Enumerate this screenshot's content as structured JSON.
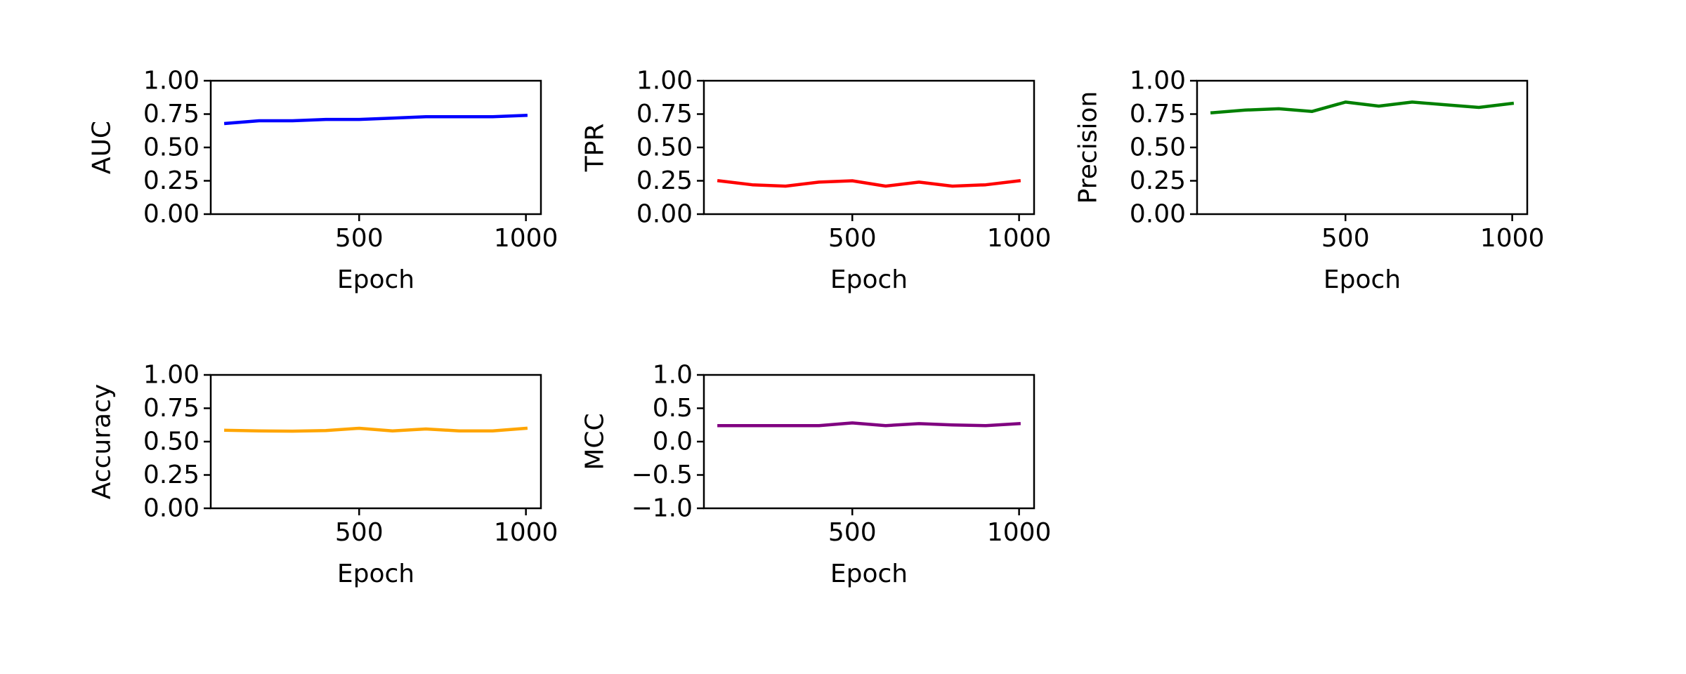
{
  "chart_data": [
    {
      "type": "line",
      "xlabel": "Epoch",
      "ylabel": "AUC",
      "color": "#0000ff",
      "xlim": [
        55,
        1045
      ],
      "ylim": [
        0.0,
        1.0
      ],
      "xticks": [
        500,
        1000
      ],
      "xtick_labels": [
        "500",
        "1000"
      ],
      "yticks": [
        0.0,
        0.25,
        0.5,
        0.75,
        1.0
      ],
      "ytick_labels": [
        "0.00",
        "0.25",
        "0.50",
        "0.75",
        "1.00"
      ],
      "x": [
        100,
        200,
        300,
        400,
        500,
        600,
        700,
        800,
        900,
        1000
      ],
      "y": [
        0.68,
        0.7,
        0.7,
        0.71,
        0.71,
        0.72,
        0.73,
        0.73,
        0.73,
        0.74
      ]
    },
    {
      "type": "line",
      "xlabel": "Epoch",
      "ylabel": "TPR",
      "color": "#ff0000",
      "xlim": [
        55,
        1045
      ],
      "ylim": [
        0.0,
        1.0
      ],
      "xticks": [
        500,
        1000
      ],
      "xtick_labels": [
        "500",
        "1000"
      ],
      "yticks": [
        0.0,
        0.25,
        0.5,
        0.75,
        1.0
      ],
      "ytick_labels": [
        "0.00",
        "0.25",
        "0.50",
        "0.75",
        "1.00"
      ],
      "x": [
        100,
        200,
        300,
        400,
        500,
        600,
        700,
        800,
        900,
        1000
      ],
      "y": [
        0.25,
        0.22,
        0.21,
        0.24,
        0.25,
        0.21,
        0.24,
        0.21,
        0.22,
        0.25
      ]
    },
    {
      "type": "line",
      "xlabel": "Epoch",
      "ylabel": "Precision",
      "color": "#008000",
      "xlim": [
        55,
        1045
      ],
      "ylim": [
        0.0,
        1.0
      ],
      "xticks": [
        500,
        1000
      ],
      "xtick_labels": [
        "500",
        "1000"
      ],
      "yticks": [
        0.0,
        0.25,
        0.5,
        0.75,
        1.0
      ],
      "ytick_labels": [
        "0.00",
        "0.25",
        "0.50",
        "0.75",
        "1.00"
      ],
      "x": [
        100,
        200,
        300,
        400,
        500,
        600,
        700,
        800,
        900,
        1000
      ],
      "y": [
        0.76,
        0.78,
        0.79,
        0.77,
        0.84,
        0.81,
        0.84,
        0.82,
        0.8,
        0.83
      ]
    },
    {
      "type": "line",
      "xlabel": "Epoch",
      "ylabel": "Accuracy",
      "color": "#ffa500",
      "xlim": [
        55,
        1045
      ],
      "ylim": [
        0.0,
        1.0
      ],
      "xticks": [
        500,
        1000
      ],
      "xtick_labels": [
        "500",
        "1000"
      ],
      "yticks": [
        0.0,
        0.25,
        0.5,
        0.75,
        1.0
      ],
      "ytick_labels": [
        "0.00",
        "0.25",
        "0.50",
        "0.75",
        "1.00"
      ],
      "x": [
        100,
        200,
        300,
        400,
        500,
        600,
        700,
        800,
        900,
        1000
      ],
      "y": [
        0.585,
        0.58,
        0.578,
        0.583,
        0.6,
        0.58,
        0.595,
        0.58,
        0.58,
        0.6
      ]
    },
    {
      "type": "line",
      "xlabel": "Epoch",
      "ylabel": "MCC",
      "color": "#800080",
      "xlim": [
        55,
        1045
      ],
      "ylim": [
        -1.0,
        1.0
      ],
      "xticks": [
        500,
        1000
      ],
      "xtick_labels": [
        "500",
        "1000"
      ],
      "yticks": [
        -1.0,
        -0.5,
        0.0,
        0.5,
        1.0
      ],
      "ytick_labels": [
        "−1.0",
        "−0.5",
        "0.0",
        "0.5",
        "1.0"
      ],
      "x": [
        100,
        200,
        300,
        400,
        500,
        600,
        700,
        800,
        900,
        1000
      ],
      "y": [
        0.24,
        0.24,
        0.24,
        0.24,
        0.28,
        0.24,
        0.27,
        0.25,
        0.24,
        0.27
      ]
    }
  ]
}
